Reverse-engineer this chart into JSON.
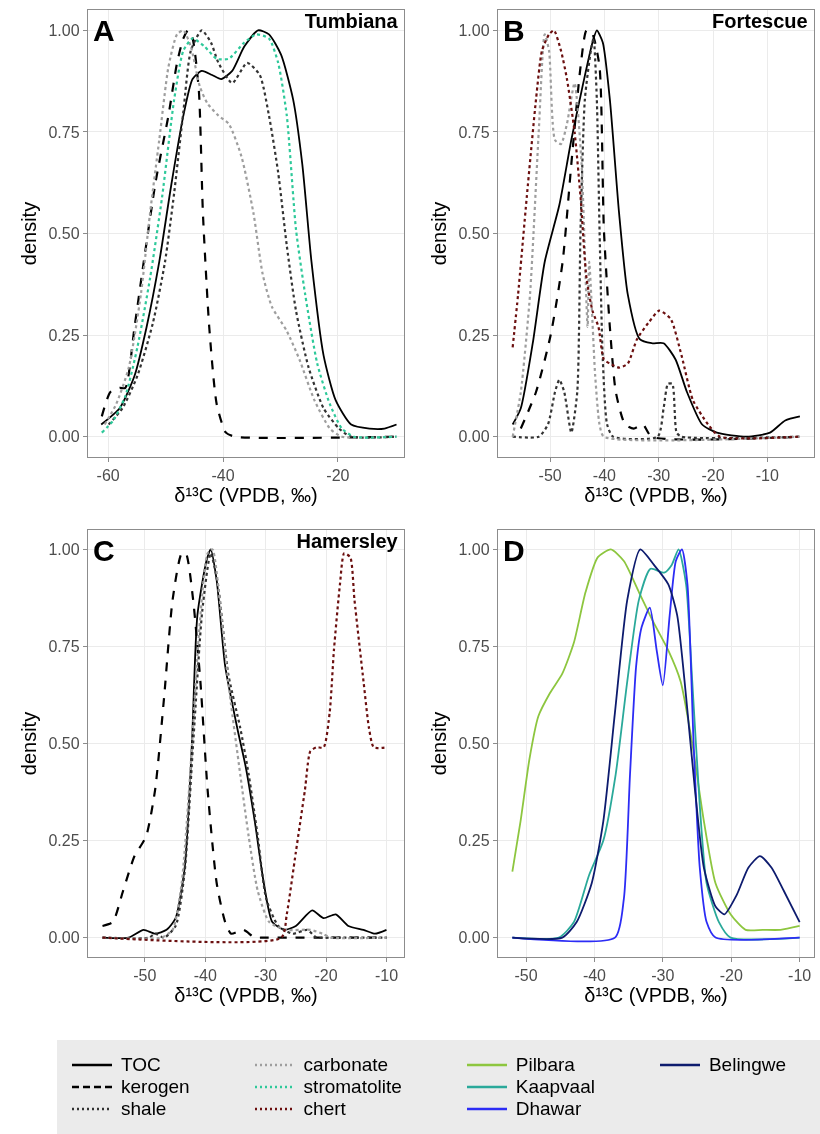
{
  "chart_data": [
    {
      "type": "line",
      "title": "Tumbiana",
      "annotations": [
        "A"
      ],
      "xlabel": "δ¹³C (VPDB, ‰)",
      "ylabel": "density",
      "xlim": [
        -63.5,
        -8.5
      ],
      "xticks": [
        -60,
        -40,
        -20
      ],
      "ylim": [
        -0.05,
        1.05
      ],
      "yticks": [
        {
          "value": 0,
          "label": "0.00"
        },
        {
          "value": 0.25,
          "label": "0.25"
        },
        {
          "value": 0.5,
          "label": "0.50"
        },
        {
          "value": 0.75,
          "label": "0.75"
        },
        {
          "value": 1,
          "label": "1.00"
        }
      ],
      "grid": true,
      "legend": "bottom",
      "series": [
        {
          "name": "TOC",
          "color": "#000000",
          "line_style": "solid",
          "x": [
            -61.2,
            -58,
            -55.4,
            -53.3,
            -51.1,
            -49,
            -46.9,
            -45.3,
            -43.7,
            -41.9,
            -40.3,
            -38.4,
            -36.3,
            -33.9,
            -32,
            -29.9,
            -27.8,
            -26.2,
            -24.6,
            -22.5,
            -20.4,
            -17.7,
            -14.5,
            -11.9,
            -9.8
          ],
          "values": [
            0.03,
            0.07,
            0.15,
            0.27,
            0.43,
            0.62,
            0.79,
            0.88,
            0.9,
            0.89,
            0.88,
            0.9,
            0.96,
            1,
            0.99,
            0.94,
            0.83,
            0.67,
            0.43,
            0.2,
            0.09,
            0.03,
            0.02,
            0.02,
            0.03
          ]
        },
        {
          "name": "kerogen",
          "color": "#000000",
          "line_style": "dashed",
          "x": [
            -61.1,
            -59.6,
            -58,
            -57,
            -55.4,
            -53.8,
            -51.7,
            -49.5,
            -48,
            -46.9,
            -46.1,
            -45.3,
            -44.2,
            -43.5,
            -42.4,
            -41.1,
            -39.5,
            -37.9,
            -9.8
          ],
          "values": [
            0.05,
            0.11,
            0.12,
            0.12,
            0.27,
            0.43,
            0.63,
            0.79,
            0.92,
            0.98,
            1,
            0.98,
            0.85,
            0.55,
            0.27,
            0.08,
            0.01,
            0,
            0
          ]
        },
        {
          "name": "shale",
          "color": "#333333",
          "line_style": "dotted",
          "x": [
            -59.9,
            -57.5,
            -54.9,
            -52.2,
            -50.1,
            -48.5,
            -46.9,
            -45.6,
            -43.7,
            -42.1,
            -40.8,
            -38.4,
            -35.8,
            -33.6,
            -32,
            -30.4,
            -28.9,
            -27.3,
            -25.1,
            -22.5,
            -19.8,
            -17.7,
            -9.8
          ],
          "values": [
            0.03,
            0.07,
            0.15,
            0.28,
            0.43,
            0.6,
            0.8,
            0.95,
            1,
            0.97,
            0.92,
            0.87,
            0.92,
            0.89,
            0.79,
            0.65,
            0.47,
            0.31,
            0.17,
            0.07,
            0.02,
            0,
            0
          ]
        },
        {
          "name": "carbonate",
          "color": "#9e9e9e",
          "line_style": "dotted",
          "x": [
            -60.6,
            -58.6,
            -56.4,
            -54.3,
            -52.7,
            -51.1,
            -49.5,
            -48,
            -46.9,
            -45.6,
            -44,
            -42.7,
            -40.8,
            -39,
            -36.8,
            -34.7,
            -33.1,
            -31.5,
            -28.9,
            -26.7,
            -24.1,
            -21.4,
            -19.3,
            -9.8
          ],
          "values": [
            0.03,
            0.08,
            0.17,
            0.35,
            0.55,
            0.73,
            0.91,
            0.99,
            1,
            0.96,
            0.86,
            0.82,
            0.79,
            0.77,
            0.69,
            0.55,
            0.4,
            0.32,
            0.26,
            0.19,
            0.09,
            0.02,
            0,
            0
          ]
        },
        {
          "name": "stromatolite",
          "color": "#2ec99a",
          "line_style": "dotted",
          "x": [
            -61.1,
            -59.1,
            -57,
            -54.9,
            -52.7,
            -50.6,
            -48.5,
            -46.9,
            -45.3,
            -43.2,
            -41.1,
            -39,
            -36.3,
            -34.2,
            -32,
            -30.4,
            -28.9,
            -27.3,
            -25.7,
            -23.6,
            -21.4,
            -19.3,
            -17.2,
            -9.8
          ],
          "values": [
            0.01,
            0.04,
            0.1,
            0.22,
            0.39,
            0.59,
            0.83,
            0.95,
            0.98,
            0.96,
            0.93,
            0.93,
            0.97,
            0.99,
            0.98,
            0.92,
            0.79,
            0.51,
            0.35,
            0.18,
            0.08,
            0.02,
            0,
            0
          ]
        }
      ]
    },
    {
      "type": "line",
      "title": "Fortescue",
      "annotations": [
        "B"
      ],
      "xlabel": "δ¹³C (VPDB, ‰)",
      "ylabel": "density",
      "xlim": [
        -59.6,
        -1.4
      ],
      "xticks": [
        -50,
        -40,
        -30,
        -20,
        -10
      ],
      "ylim": [
        -0.05,
        1.05
      ],
      "yticks": [
        {
          "value": 0,
          "label": "0.00"
        },
        {
          "value": 0.25,
          "label": "0.25"
        },
        {
          "value": 0.5,
          "label": "0.50"
        },
        {
          "value": 0.75,
          "label": "0.75"
        },
        {
          "value": 1,
          "label": "1.00"
        }
      ],
      "grid": true,
      "legend": "bottom",
      "series": [
        {
          "name": "TOC",
          "color": "#000000",
          "line_style": "solid",
          "x": [
            -56.9,
            -55.4,
            -53.2,
            -51,
            -48.3,
            -46.1,
            -43.9,
            -42.2,
            -41.4,
            -40.3,
            -39,
            -37.3,
            -35.7,
            -33.5,
            -31.3,
            -29.1,
            -26.9,
            -24.8,
            -22,
            -19.3,
            -13.8,
            -9.5,
            -6.7,
            -4
          ],
          "values": [
            0.03,
            0.07,
            0.23,
            0.43,
            0.57,
            0.73,
            0.87,
            0.97,
            1,
            0.97,
            0.83,
            0.55,
            0.35,
            0.24,
            0.23,
            0.23,
            0.19,
            0.11,
            0.03,
            0.01,
            0,
            0.01,
            0.04,
            0.05
          ]
        },
        {
          "name": "kerogen",
          "color": "#000000",
          "line_style": "dashed",
          "x": [
            -55.4,
            -52.6,
            -49.9,
            -47.7,
            -46.1,
            -44.4,
            -43.3,
            -42.2,
            -40.9,
            -40.1,
            -39,
            -37.9,
            -36.2,
            -34.6,
            -32.9,
            -31.3,
            -4
          ],
          "values": [
            0.02,
            0.11,
            0.25,
            0.43,
            0.67,
            0.91,
            1,
            0.99,
            0.91,
            0.51,
            0.27,
            0.11,
            0.03,
            0.02,
            0.03,
            0,
            0
          ]
        },
        {
          "name": "shale",
          "color": "#333333",
          "line_style": "dotted",
          "x": [
            -56.9,
            -52.1,
            -50.4,
            -49.1,
            -48.3,
            -47.4,
            -46.1,
            -45,
            -44.4,
            -43.6,
            -42.5,
            -42,
            -41.4,
            -40.9,
            -40.3,
            -39.5,
            -38.4,
            -30.2,
            -29.1,
            -28.3,
            -27.5,
            -26.7,
            -25.8,
            -4
          ],
          "values": [
            0,
            0,
            0.03,
            0.11,
            0.14,
            0.11,
            0.01,
            0.11,
            0.51,
            0.83,
            0.95,
            0.98,
            0.83,
            0.51,
            0.19,
            0.03,
            0,
            0,
            0.07,
            0.13,
            0.13,
            0.01,
            0,
            0
          ]
        },
        {
          "name": "carbonate",
          "color": "#9e9e9e",
          "line_style": "dotted",
          "x": [
            -56.9,
            -55.4,
            -53.7,
            -52.1,
            -51,
            -50.2,
            -49.1,
            -48,
            -46.9,
            -45.5,
            -44.2,
            -43.1,
            -42.8,
            -41.7,
            -40.9,
            -40.1,
            -4
          ],
          "values": [
            0,
            0.11,
            0.35,
            0.75,
            0.99,
            0.95,
            0.73,
            0.72,
            0.77,
            0.87,
            0.67,
            0.27,
            0.43,
            0.15,
            0.03,
            0,
            0
          ]
        },
        {
          "name": "chert",
          "color": "#6b0f0f",
          "line_style": "dotted",
          "x": [
            -56.9,
            -55.9,
            -54.3,
            -52.6,
            -51.5,
            -50.2,
            -49.3,
            -48,
            -46.9,
            -45.5,
            -44.4,
            -43.3,
            -42.2,
            -41.1,
            -40.1,
            -39,
            -37.3,
            -35.7,
            -34,
            -31.9,
            -29.9,
            -27.8,
            -25.8,
            -23.7,
            -20.9,
            -18.7,
            -4
          ],
          "values": [
            0.22,
            0.35,
            0.59,
            0.83,
            0.95,
            0.99,
            1,
            0.95,
            0.88,
            0.75,
            0.59,
            0.39,
            0.31,
            0.27,
            0.19,
            0.18,
            0.17,
            0.18,
            0.24,
            0.28,
            0.31,
            0.29,
            0.2,
            0.09,
            0.03,
            0,
            0
          ]
        }
      ]
    },
    {
      "type": "line",
      "title": "Hamersley",
      "annotations": [
        "C"
      ],
      "xlabel": "δ¹³C (VPDB, ‰)",
      "ylabel": "density",
      "xlim": [
        -59.4,
        -7.1
      ],
      "xticks": [
        -50,
        -40,
        -30,
        -20,
        -10
      ],
      "ylim": [
        -0.05,
        1.05
      ],
      "yticks": [
        {
          "value": 0,
          "label": "0.00"
        },
        {
          "value": 0.25,
          "label": "0.25"
        },
        {
          "value": 0.5,
          "label": "0.50"
        },
        {
          "value": 0.75,
          "label": "0.75"
        },
        {
          "value": 1,
          "label": "1.00"
        }
      ],
      "grid": true,
      "legend": "bottom",
      "series": [
        {
          "name": "TOC",
          "color": "#000000",
          "line_style": "solid",
          "x": [
            -57,
            -52.7,
            -50.2,
            -48.3,
            -46.4,
            -44.9,
            -43.4,
            -42.2,
            -41.3,
            -39.8,
            -39.1,
            -38.1,
            -36.7,
            -34.7,
            -33.3,
            -31.8,
            -30.3,
            -28.9,
            -26.9,
            -25,
            -22.3,
            -20.4,
            -18.4,
            -16.3,
            -13.8,
            -11.9,
            -10
          ],
          "values": [
            0,
            0,
            0.02,
            0.01,
            0.02,
            0.05,
            0.18,
            0.5,
            0.83,
            0.97,
            1,
            0.92,
            0.7,
            0.54,
            0.44,
            0.3,
            0.14,
            0.04,
            0.02,
            0.03,
            0.07,
            0.05,
            0.06,
            0.03,
            0.02,
            0.01,
            0.02
          ]
        },
        {
          "name": "kerogen",
          "color": "#000000",
          "line_style": "dashed",
          "x": [
            -57,
            -55.3,
            -53.6,
            -51.7,
            -49.8,
            -48.3,
            -46.8,
            -45.4,
            -43.9,
            -43.2,
            -42,
            -40.8,
            -39.6,
            -38.1,
            -36.7,
            -35.7,
            -33.7,
            -31.8,
            -30.3,
            -10
          ],
          "values": [
            0.03,
            0.04,
            0.12,
            0.21,
            0.26,
            0.38,
            0.62,
            0.87,
            0.99,
            0.99,
            0.87,
            0.66,
            0.38,
            0.14,
            0.04,
            0.01,
            0.02,
            0,
            0,
            0
          ]
        },
        {
          "name": "shale",
          "color": "#333333",
          "line_style": "dotted",
          "x": [
            -57,
            -49.3,
            -48.3,
            -46.8,
            -44.9,
            -43.4,
            -42,
            -40.5,
            -39.1,
            -37.9,
            -36.2,
            -34.2,
            -32.8,
            -31.3,
            -29.9,
            -27.9,
            -25.5,
            -23.1,
            -21.6,
            -19.2,
            -10
          ],
          "values": [
            0,
            0,
            0.01,
            0,
            0.03,
            0.17,
            0.5,
            0.84,
            0.99,
            0.91,
            0.68,
            0.54,
            0.42,
            0.26,
            0.1,
            0.03,
            0.01,
            0.02,
            0,
            0,
            0
          ]
        },
        {
          "name": "carbonate",
          "color": "#9e9e9e",
          "line_style": "dotted",
          "x": [
            -57,
            -47.3,
            -45.4,
            -43.9,
            -42.5,
            -41,
            -39.6,
            -38.8,
            -37.6,
            -36.2,
            -34.2,
            -32.8,
            -31.3,
            -29.4,
            -26.5,
            -22.6,
            -20.6,
            -19.2,
            -10
          ],
          "values": [
            0,
            0,
            0.02,
            0.14,
            0.42,
            0.79,
            0.99,
            1,
            0.87,
            0.66,
            0.42,
            0.26,
            0.12,
            0.04,
            0.02,
            0.02,
            0.01,
            0,
            0
          ]
        },
        {
          "name": "chert",
          "color": "#6b0f0f",
          "line_style": "dotted",
          "x": [
            -57,
            -27.4,
            -26.5,
            -25,
            -23.5,
            -22.6,
            -21.6,
            -20.4,
            -19.4,
            -18.7,
            -17.7,
            -17,
            -16,
            -15.3,
            -13.8,
            -12.9,
            -12.1,
            -10
          ],
          "values": [
            0,
            0,
            0.06,
            0.22,
            0.38,
            0.48,
            0.49,
            0.49,
            0.58,
            0.74,
            0.91,
            0.99,
            0.98,
            0.87,
            0.66,
            0.54,
            0.49,
            0.49
          ]
        }
      ]
    },
    {
      "type": "line",
      "annotations": [
        "D"
      ],
      "xlabel": "δ¹³C (VPDB, ‰)",
      "ylabel": "density",
      "xlim": [
        -54.1,
        -7.9
      ],
      "xticks": [
        -50,
        -40,
        -30,
        -20,
        -10
      ],
      "ylim": [
        -0.05,
        1.05
      ],
      "yticks": [
        {
          "value": 0,
          "label": "0.00"
        },
        {
          "value": 0.25,
          "label": "0.25"
        },
        {
          "value": 0.5,
          "label": "0.50"
        },
        {
          "value": 0.75,
          "label": "0.75"
        },
        {
          "value": 1,
          "label": "1.00"
        }
      ],
      "grid": true,
      "legend": "bottom",
      "series": [
        {
          "name": "Pilbara",
          "color": "#8dc63f",
          "line_style": "solid",
          "x": [
            -52,
            -50.8,
            -49.5,
            -48.2,
            -46.5,
            -44.7,
            -43,
            -41.3,
            -39.5,
            -37.6,
            -35.7,
            -33.5,
            -31.3,
            -29.2,
            -27.4,
            -25.7,
            -24,
            -22.3,
            -20.1,
            -17.9,
            -15.4,
            -12.8,
            -10
          ],
          "values": [
            0.17,
            0.3,
            0.46,
            0.57,
            0.63,
            0.68,
            0.76,
            0.89,
            0.98,
            1,
            0.97,
            0.89,
            0.81,
            0.74,
            0.66,
            0.5,
            0.3,
            0.14,
            0.06,
            0.02,
            0.02,
            0.02,
            0.03
          ]
        },
        {
          "name": "Kaapvaal",
          "color": "#2aa99a",
          "line_style": "solid",
          "x": [
            -52,
            -45.2,
            -43,
            -40.8,
            -38.7,
            -36.9,
            -35.2,
            -33.5,
            -31.8,
            -29.8,
            -28.7,
            -27.7,
            -26.6,
            -25.7,
            -24.6,
            -23.6,
            -21.8,
            -20.1,
            -10
          ],
          "values": [
            0,
            0,
            0.04,
            0.16,
            0.25,
            0.42,
            0.66,
            0.87,
            0.95,
            0.94,
            0.96,
            1,
            0.91,
            0.66,
            0.34,
            0.14,
            0.04,
            0,
            0
          ]
        },
        {
          "name": "Dhawar",
          "color": "#2c2cf5",
          "line_style": "solid",
          "x": [
            -52,
            -37,
            -35.7,
            -34.8,
            -33.9,
            -33.1,
            -31.9,
            -30.9,
            -30,
            -29,
            -28.1,
            -27.2,
            -26.4,
            -25.5,
            -24.6,
            -23.6,
            -22.3,
            -10
          ],
          "values": [
            0,
            0,
            0.1,
            0.42,
            0.7,
            0.8,
            0.85,
            0.74,
            0.65,
            0.83,
            0.97,
            1,
            0.91,
            0.5,
            0.18,
            0.04,
            0,
            0
          ]
        },
        {
          "name": "Belingwe",
          "color": "#0d1b6e",
          "line_style": "solid",
          "x": [
            -52,
            -44.7,
            -42.6,
            -40.4,
            -38.7,
            -37,
            -35.2,
            -33.3,
            -31.3,
            -29.2,
            -27.9,
            -26.6,
            -25.3,
            -24,
            -22.3,
            -21,
            -19.2,
            -17.5,
            -15.8,
            -14.1,
            -12.3,
            -10
          ],
          "values": [
            0,
            0,
            0.04,
            0.14,
            0.3,
            0.58,
            0.87,
            1,
            0.96,
            0.91,
            0.83,
            0.62,
            0.38,
            0.18,
            0.08,
            0.06,
            0.11,
            0.18,
            0.21,
            0.18,
            0.12,
            0.04
          ]
        }
      ]
    }
  ]
}
